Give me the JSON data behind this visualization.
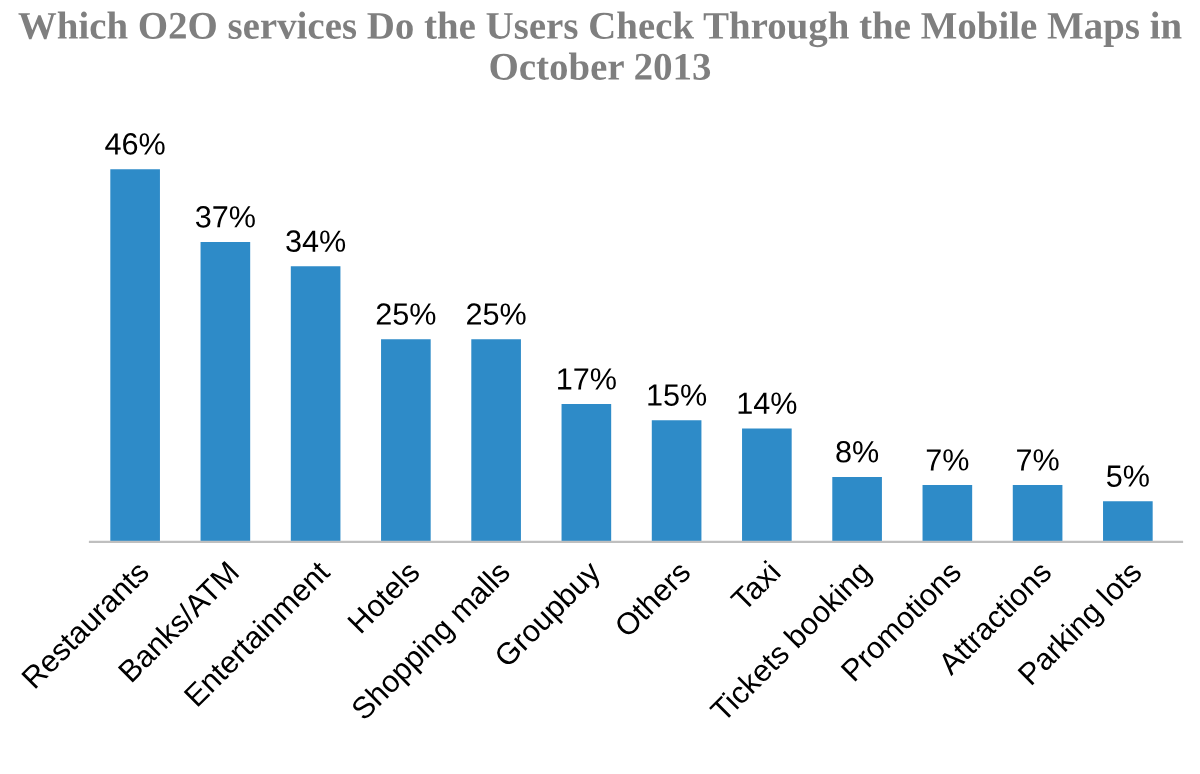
{
  "chart_data": {
    "type": "bar",
    "title": "Which O2O services Do the Users Check Through the Mobile Maps in October 2013",
    "categories": [
      "Restaurants",
      "Banks/ATM",
      "Entertainment",
      "Hotels",
      "Shopping malls",
      "Groupbuy",
      "Others",
      "Taxi",
      "Tickets booking",
      "Promotions",
      "Attractions",
      "Parking lots"
    ],
    "values": [
      46,
      37,
      34,
      25,
      25,
      17,
      15,
      14,
      8,
      7,
      7,
      5
    ],
    "value_labels": [
      "46%",
      "37%",
      "34%",
      "25%",
      "25%",
      "17%",
      "15%",
      "14%",
      "8%",
      "7%",
      "7%",
      "5%"
    ],
    "color": "#2e8bc8",
    "grid": false,
    "legend": false
  }
}
